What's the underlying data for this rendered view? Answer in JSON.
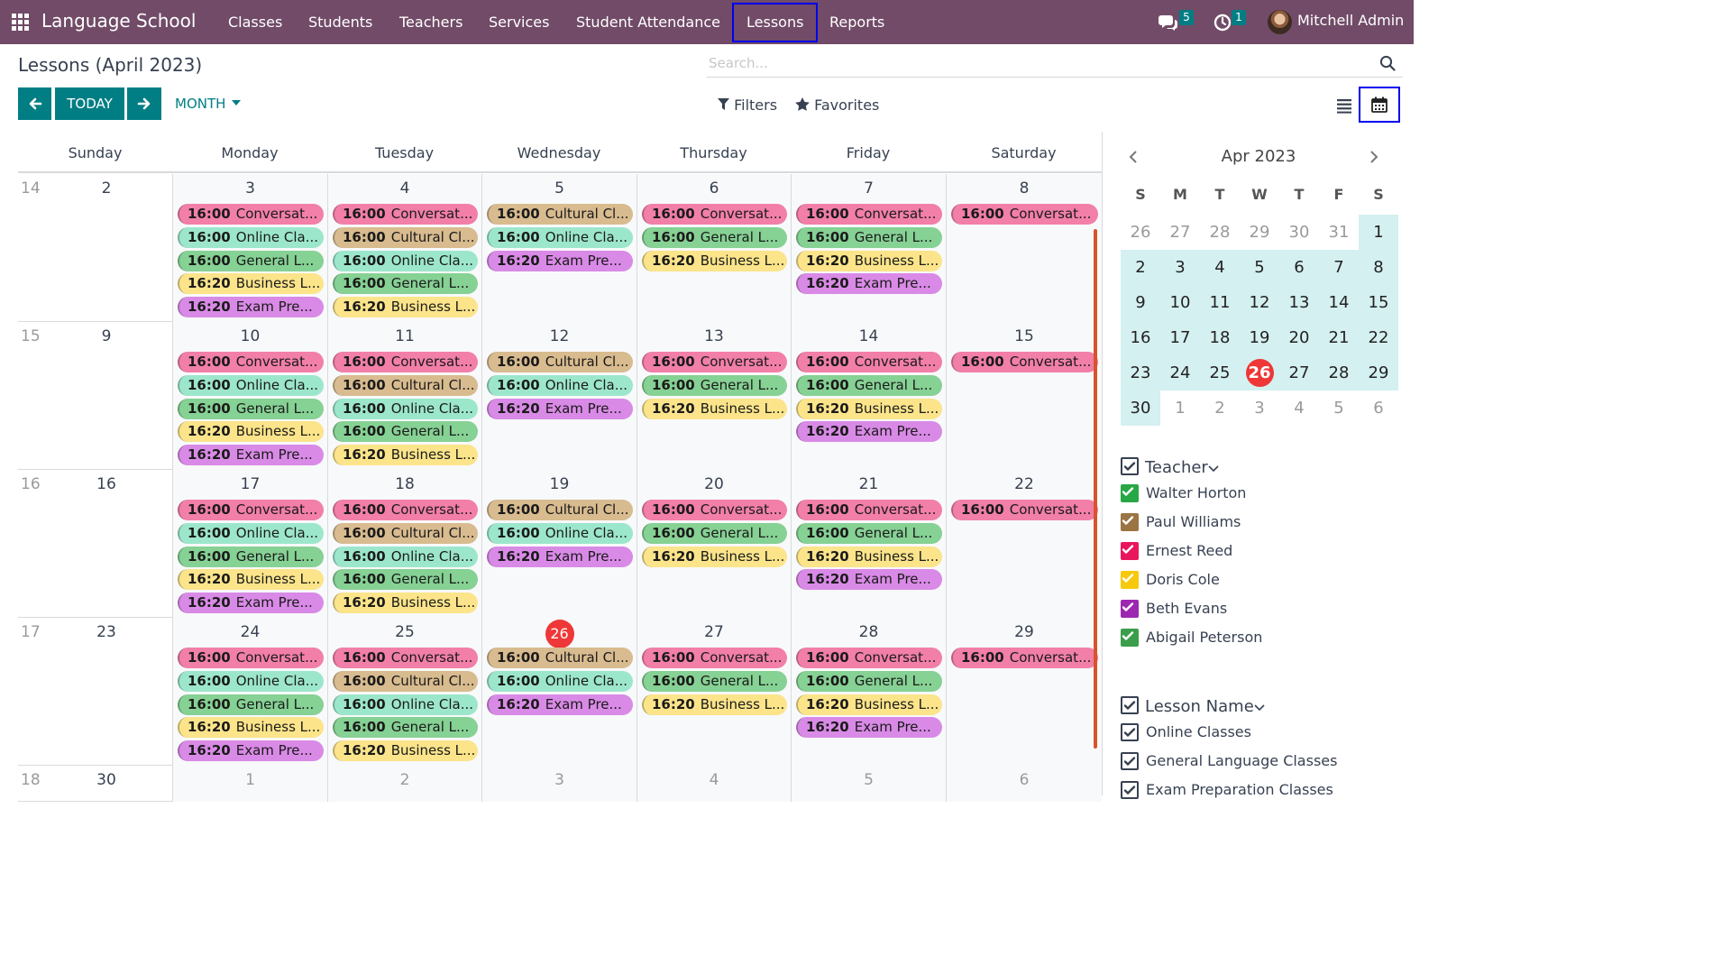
{
  "app": {
    "name": "Language School",
    "menu": [
      {
        "label": "Classes"
      },
      {
        "label": "Students"
      },
      {
        "label": "Teachers"
      },
      {
        "label": "Services"
      },
      {
        "label": "Student Attendance"
      },
      {
        "label": "Lessons",
        "active": true
      },
      {
        "label": "Reports"
      }
    ],
    "messages_count": "5",
    "activities_count": "1",
    "user_name": "Mitchell Admin"
  },
  "control_panel": {
    "title": "Lessons (April 2023)",
    "search_placeholder": "Search...",
    "today_label": "TODAY",
    "scale_label": "MONTH",
    "filters_label": "Filters",
    "favorites_label": "Favorites",
    "active_view": "calendar"
  },
  "calendar": {
    "weekdays": [
      "Sunday",
      "Monday",
      "Tuesday",
      "Wednesday",
      "Thursday",
      "Friday",
      "Saturday"
    ],
    "weeks": [
      {
        "week": "14",
        "days": [
          {
            "day": "2",
            "events": []
          },
          {
            "day": "3",
            "events": [
              {
                "time": "16:00",
                "title": "Conversat...",
                "color": "#f27fa8"
              },
              {
                "time": "16:00",
                "title": "Online Cla...",
                "color": "#9ce7cc"
              },
              {
                "time": "16:00",
                "title": "General L...",
                "color": "#86d194"
              },
              {
                "time": "16:20",
                "title": "Business L...",
                "color": "#fbe48a"
              },
              {
                "time": "16:20",
                "title": "Exam Pre...",
                "color": "#d98ae6"
              }
            ]
          },
          {
            "day": "4",
            "events": [
              {
                "time": "16:00",
                "title": "Conversat...",
                "color": "#f27fa8"
              },
              {
                "time": "16:00",
                "title": "Cultural Cl...",
                "color": "#d8bb8f"
              },
              {
                "time": "16:00",
                "title": "Online Cla...",
                "color": "#9ce7cc"
              },
              {
                "time": "16:00",
                "title": "General L...",
                "color": "#86d194"
              },
              {
                "time": "16:20",
                "title": "Business L...",
                "color": "#fbe48a"
              }
            ]
          },
          {
            "day": "5",
            "events": [
              {
                "time": "16:00",
                "title": "Cultural Cl...",
                "color": "#d8bb8f"
              },
              {
                "time": "16:00",
                "title": "Online Cla...",
                "color": "#9ce7cc"
              },
              {
                "time": "16:20",
                "title": "Exam Pre...",
                "color": "#d98ae6"
              }
            ]
          },
          {
            "day": "6",
            "events": [
              {
                "time": "16:00",
                "title": "Conversat...",
                "color": "#f27fa8"
              },
              {
                "time": "16:00",
                "title": "General L...",
                "color": "#86d194"
              },
              {
                "time": "16:20",
                "title": "Business L...",
                "color": "#fbe48a"
              }
            ]
          },
          {
            "day": "7",
            "events": [
              {
                "time": "16:00",
                "title": "Conversat...",
                "color": "#f27fa8"
              },
              {
                "time": "16:00",
                "title": "General L...",
                "color": "#86d194"
              },
              {
                "time": "16:20",
                "title": "Business L...",
                "color": "#fbe48a"
              },
              {
                "time": "16:20",
                "title": "Exam Pre...",
                "color": "#d98ae6"
              }
            ]
          },
          {
            "day": "8",
            "events": [
              {
                "time": "16:00",
                "title": "Conversat...",
                "color": "#f27fa8"
              }
            ]
          }
        ]
      },
      {
        "week": "15",
        "days": [
          {
            "day": "9",
            "events": []
          },
          {
            "day": "10",
            "events": [
              {
                "time": "16:00",
                "title": "Conversat...",
                "color": "#f27fa8"
              },
              {
                "time": "16:00",
                "title": "Online Cla...",
                "color": "#9ce7cc"
              },
              {
                "time": "16:00",
                "title": "General L...",
                "color": "#86d194"
              },
              {
                "time": "16:20",
                "title": "Business L...",
                "color": "#fbe48a"
              },
              {
                "time": "16:20",
                "title": "Exam Pre...",
                "color": "#d98ae6"
              }
            ]
          },
          {
            "day": "11",
            "events": [
              {
                "time": "16:00",
                "title": "Conversat...",
                "color": "#f27fa8"
              },
              {
                "time": "16:00",
                "title": "Cultural Cl...",
                "color": "#d8bb8f"
              },
              {
                "time": "16:00",
                "title": "Online Cla...",
                "color": "#9ce7cc"
              },
              {
                "time": "16:00",
                "title": "General L...",
                "color": "#86d194"
              },
              {
                "time": "16:20",
                "title": "Business L...",
                "color": "#fbe48a"
              }
            ]
          },
          {
            "day": "12",
            "events": [
              {
                "time": "16:00",
                "title": "Cultural Cl...",
                "color": "#d8bb8f"
              },
              {
                "time": "16:00",
                "title": "Online Cla...",
                "color": "#9ce7cc"
              },
              {
                "time": "16:20",
                "title": "Exam Pre...",
                "color": "#d98ae6"
              }
            ]
          },
          {
            "day": "13",
            "events": [
              {
                "time": "16:00",
                "title": "Conversat...",
                "color": "#f27fa8"
              },
              {
                "time": "16:00",
                "title": "General L...",
                "color": "#86d194"
              },
              {
                "time": "16:20",
                "title": "Business L...",
                "color": "#fbe48a"
              }
            ]
          },
          {
            "day": "14",
            "events": [
              {
                "time": "16:00",
                "title": "Conversat...",
                "color": "#f27fa8"
              },
              {
                "time": "16:00",
                "title": "General L...",
                "color": "#86d194"
              },
              {
                "time": "16:20",
                "title": "Business L...",
                "color": "#fbe48a"
              },
              {
                "time": "16:20",
                "title": "Exam Pre...",
                "color": "#d98ae6"
              }
            ]
          },
          {
            "day": "15",
            "events": [
              {
                "time": "16:00",
                "title": "Conversat...",
                "color": "#f27fa8"
              }
            ]
          }
        ]
      },
      {
        "week": "16",
        "days": [
          {
            "day": "16",
            "events": []
          },
          {
            "day": "17",
            "events": [
              {
                "time": "16:00",
                "title": "Conversat...",
                "color": "#f27fa8"
              },
              {
                "time": "16:00",
                "title": "Online Cla...",
                "color": "#9ce7cc"
              },
              {
                "time": "16:00",
                "title": "General L...",
                "color": "#86d194"
              },
              {
                "time": "16:20",
                "title": "Business L...",
                "color": "#fbe48a"
              },
              {
                "time": "16:20",
                "title": "Exam Pre...",
                "color": "#d98ae6"
              }
            ]
          },
          {
            "day": "18",
            "events": [
              {
                "time": "16:00",
                "title": "Conversat...",
                "color": "#f27fa8"
              },
              {
                "time": "16:00",
                "title": "Cultural Cl...",
                "color": "#d8bb8f"
              },
              {
                "time": "16:00",
                "title": "Online Cla...",
                "color": "#9ce7cc"
              },
              {
                "time": "16:00",
                "title": "General L...",
                "color": "#86d194"
              },
              {
                "time": "16:20",
                "title": "Business L...",
                "color": "#fbe48a"
              }
            ]
          },
          {
            "day": "19",
            "events": [
              {
                "time": "16:00",
                "title": "Cultural Cl...",
                "color": "#d8bb8f"
              },
              {
                "time": "16:00",
                "title": "Online Cla...",
                "color": "#9ce7cc"
              },
              {
                "time": "16:20",
                "title": "Exam Pre...",
                "color": "#d98ae6"
              }
            ]
          },
          {
            "day": "20",
            "events": [
              {
                "time": "16:00",
                "title": "Conversat...",
                "color": "#f27fa8"
              },
              {
                "time": "16:00",
                "title": "General L...",
                "color": "#86d194"
              },
              {
                "time": "16:20",
                "title": "Business L...",
                "color": "#fbe48a"
              }
            ]
          },
          {
            "day": "21",
            "events": [
              {
                "time": "16:00",
                "title": "Conversat...",
                "color": "#f27fa8"
              },
              {
                "time": "16:00",
                "title": "General L...",
                "color": "#86d194"
              },
              {
                "time": "16:20",
                "title": "Business L...",
                "color": "#fbe48a"
              },
              {
                "time": "16:20",
                "title": "Exam Pre...",
                "color": "#d98ae6"
              }
            ]
          },
          {
            "day": "22",
            "events": [
              {
                "time": "16:00",
                "title": "Conversat...",
                "color": "#f27fa8"
              }
            ]
          }
        ]
      },
      {
        "week": "17",
        "days": [
          {
            "day": "23",
            "events": []
          },
          {
            "day": "24",
            "events": [
              {
                "time": "16:00",
                "title": "Conversat...",
                "color": "#f27fa8"
              },
              {
                "time": "16:00",
                "title": "Online Cla...",
                "color": "#9ce7cc"
              },
              {
                "time": "16:00",
                "title": "General L...",
                "color": "#86d194"
              },
              {
                "time": "16:20",
                "title": "Business L...",
                "color": "#fbe48a"
              },
              {
                "time": "16:20",
                "title": "Exam Pre...",
                "color": "#d98ae6"
              }
            ]
          },
          {
            "day": "25",
            "events": [
              {
                "time": "16:00",
                "title": "Conversat...",
                "color": "#f27fa8"
              },
              {
                "time": "16:00",
                "title": "Cultural Cl...",
                "color": "#d8bb8f"
              },
              {
                "time": "16:00",
                "title": "Online Cla...",
                "color": "#9ce7cc"
              },
              {
                "time": "16:00",
                "title": "General L...",
                "color": "#86d194"
              },
              {
                "time": "16:20",
                "title": "Business L...",
                "color": "#fbe48a"
              }
            ]
          },
          {
            "day": "26",
            "today": true,
            "events": [
              {
                "time": "16:00",
                "title": "Cultural Cl...",
                "color": "#d8bb8f"
              },
              {
                "time": "16:00",
                "title": "Online Cla...",
                "color": "#9ce7cc"
              },
              {
                "time": "16:20",
                "title": "Exam Pre...",
                "color": "#d98ae6"
              }
            ]
          },
          {
            "day": "27",
            "events": [
              {
                "time": "16:00",
                "title": "Conversat...",
                "color": "#f27fa8"
              },
              {
                "time": "16:00",
                "title": "General L...",
                "color": "#86d194"
              },
              {
                "time": "16:20",
                "title": "Business L...",
                "color": "#fbe48a"
              }
            ]
          },
          {
            "day": "28",
            "events": [
              {
                "time": "16:00",
                "title": "Conversat...",
                "color": "#f27fa8"
              },
              {
                "time": "16:00",
                "title": "General L...",
                "color": "#86d194"
              },
              {
                "time": "16:20",
                "title": "Business L...",
                "color": "#fbe48a"
              },
              {
                "time": "16:20",
                "title": "Exam Pre...",
                "color": "#d98ae6"
              }
            ]
          },
          {
            "day": "29",
            "events": [
              {
                "time": "16:00",
                "title": "Conversat...",
                "color": "#f27fa8"
              }
            ]
          }
        ]
      },
      {
        "week": "18",
        "days": [
          {
            "day": "30",
            "events": []
          },
          {
            "day": "1",
            "other": true,
            "events": []
          },
          {
            "day": "2",
            "other": true,
            "events": []
          },
          {
            "day": "3",
            "other": true,
            "events": []
          },
          {
            "day": "4",
            "other": true,
            "events": []
          },
          {
            "day": "5",
            "other": true,
            "events": []
          },
          {
            "day": "6",
            "other": true,
            "events": []
          }
        ]
      }
    ]
  },
  "mini_calendar": {
    "title": "Apr 2023",
    "dow": [
      "S",
      "M",
      "T",
      "W",
      "T",
      "F",
      "S"
    ],
    "weeks": [
      [
        "26",
        "27",
        "28",
        "29",
        "30",
        "31",
        "1"
      ],
      [
        "2",
        "3",
        "4",
        "5",
        "6",
        "7",
        "8"
      ],
      [
        "9",
        "10",
        "11",
        "12",
        "13",
        "14",
        "15"
      ],
      [
        "16",
        "17",
        "18",
        "19",
        "20",
        "21",
        "22"
      ],
      [
        "23",
        "24",
        "25",
        "26",
        "27",
        "28",
        "29"
      ],
      [
        "30",
        "1",
        "2",
        "3",
        "4",
        "5",
        "6"
      ]
    ],
    "today": "26"
  },
  "filters": {
    "teacher": {
      "label": "Teacher",
      "items": [
        {
          "label": "Walter Horton",
          "color": "#28a745"
        },
        {
          "label": "Paul Williams",
          "color": "#9b7444"
        },
        {
          "label": "Ernest Reed",
          "color": "#e8175d"
        },
        {
          "label": "Doris Cole",
          "color": "#f6c90e"
        },
        {
          "label": "Beth Evans",
          "color": "#9c27b0"
        },
        {
          "label": "Abigail Peterson",
          "color": "#3b9e4a"
        }
      ]
    },
    "lesson_name": {
      "label": "Lesson Name",
      "items": [
        {
          "label": "Online Classes"
        },
        {
          "label": "General Language Classes"
        },
        {
          "label": "Exam Preparation Classes"
        }
      ]
    }
  }
}
